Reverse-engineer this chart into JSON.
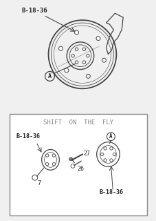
{
  "fig_bg": "#f0f0f0",
  "top_label": "B-18-36",
  "top_label_A": "A",
  "box_title": "SHIFT  ON  THE  FLY",
  "box_label1": "B-18-36",
  "box_label2": "B-18-36",
  "box_label_A": "A",
  "num_27": "27",
  "num_26": "26",
  "num_7": "7",
  "line_color": "#444444",
  "text_color": "#222222"
}
